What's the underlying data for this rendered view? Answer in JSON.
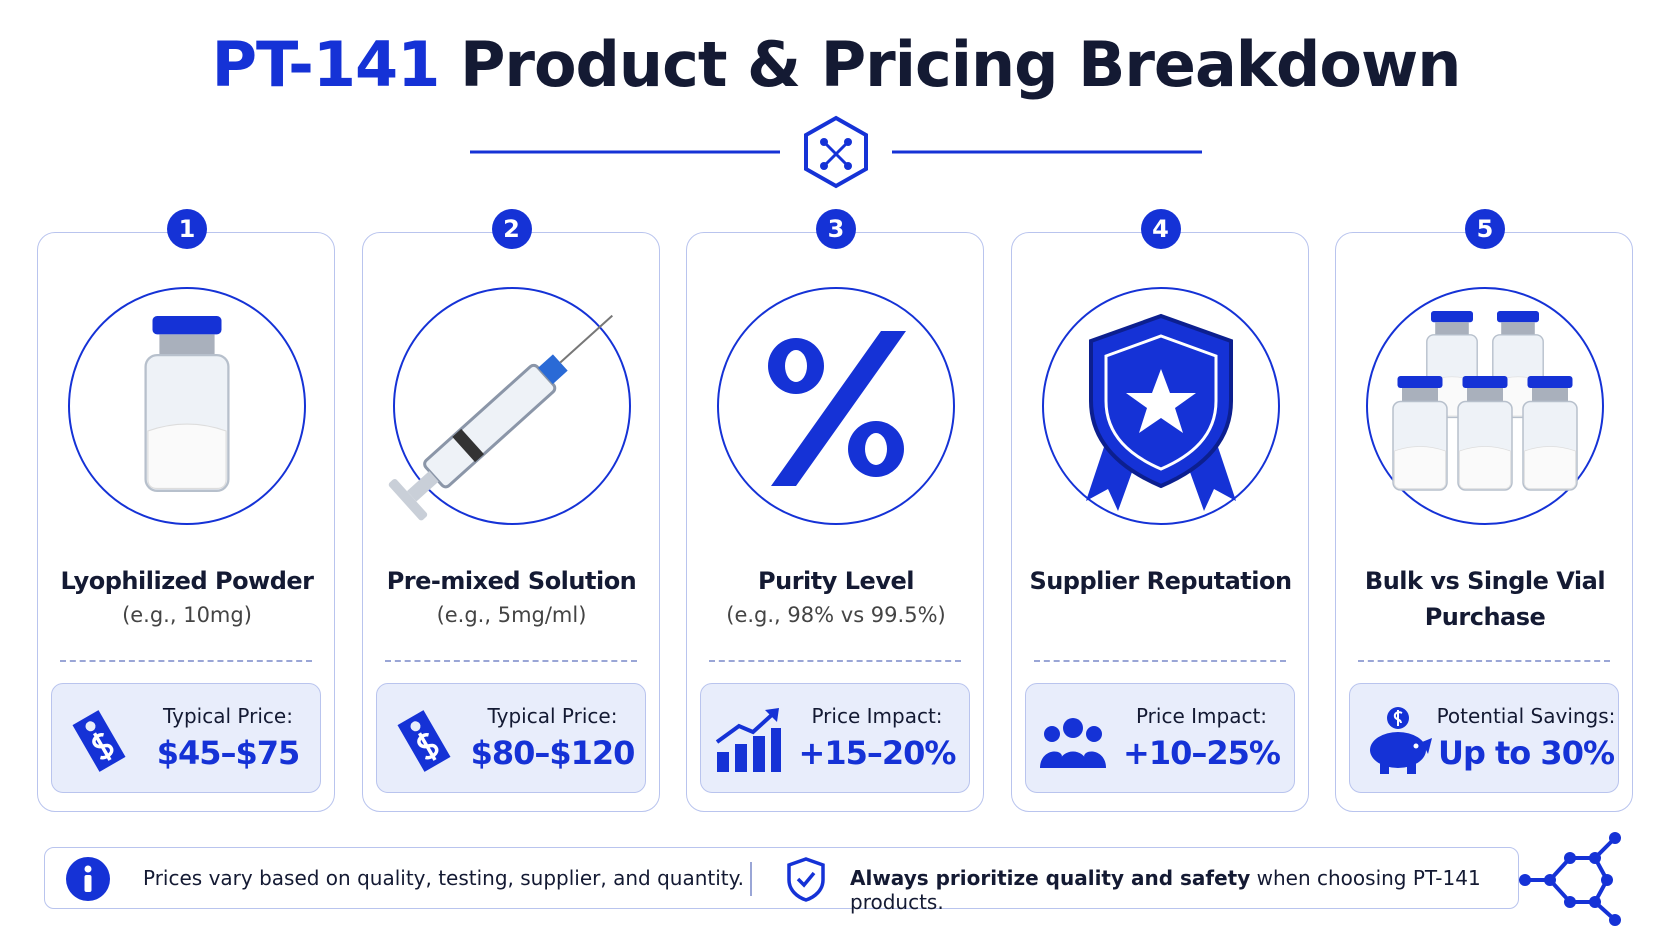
{
  "header": {
    "title_highlight": "PT-141",
    "title_rest": "Product & Pricing Breakdown"
  },
  "cards": [
    {
      "number": "1",
      "title": "Lyophilized Powder",
      "subtitle": "(e.g., 10mg)",
      "price_label": "Typical Price:",
      "price": "$45–$75"
    },
    {
      "number": "2",
      "title": "Pre-mixed Solution",
      "subtitle": "(e.g., 5mg/ml)",
      "price_label": "Typical Price:",
      "price": "$80–$120"
    },
    {
      "number": "3",
      "title": "Purity Level",
      "subtitle": "(e.g., 98% vs 99.5%)",
      "price_label": "Price Impact:",
      "price": "+15–20%"
    },
    {
      "number": "4",
      "title": "Supplier Reputation",
      "price_label": "Price Impact:",
      "price": "+10–25%"
    },
    {
      "number": "5",
      "title": "Bulk vs Single Vial Purchase",
      "price_label": "Potential Savings:",
      "price": "Up to 30%"
    }
  ],
  "footer": {
    "note": "Prices vary based on quality, testing, supplier, and quantity.",
    "advice_bold": "Always prioritize quality and safety",
    "advice_rest": " when choosing PT-141 products."
  }
}
